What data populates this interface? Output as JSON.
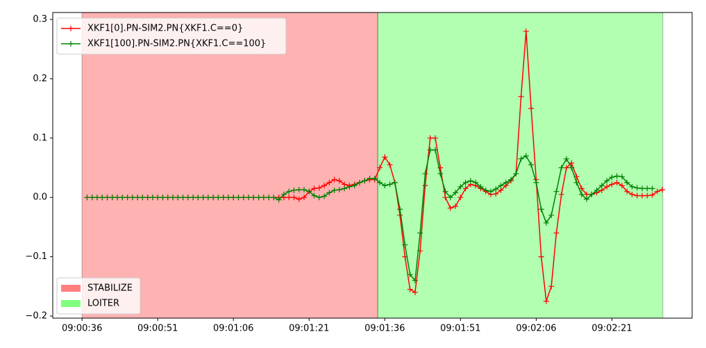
{
  "chart_data": {
    "type": "line",
    "x": [
      "09:00:37",
      "09:00:38",
      "09:00:39",
      "09:00:40",
      "09:00:41",
      "09:00:42",
      "09:00:43",
      "09:00:44",
      "09:00:45",
      "09:00:46",
      "09:00:47",
      "09:00:48",
      "09:00:49",
      "09:00:50",
      "09:00:51",
      "09:00:52",
      "09:00:53",
      "09:00:54",
      "09:00:55",
      "09:00:56",
      "09:00:57",
      "09:00:58",
      "09:00:59",
      "09:01:00",
      "09:01:01",
      "09:01:02",
      "09:01:03",
      "09:01:04",
      "09:01:05",
      "09:01:06",
      "09:01:07",
      "09:01:08",
      "09:01:09",
      "09:01:10",
      "09:01:11",
      "09:01:12",
      "09:01:13",
      "09:01:14",
      "09:01:15",
      "09:01:16",
      "09:01:17",
      "09:01:18",
      "09:01:19",
      "09:01:20",
      "09:01:21",
      "09:01:22",
      "09:01:23",
      "09:01:24",
      "09:01:25",
      "09:01:26",
      "09:01:27",
      "09:01:28",
      "09:01:29",
      "09:01:30",
      "09:01:31",
      "09:01:32",
      "09:01:33",
      "09:01:34",
      "09:01:35",
      "09:01:36",
      "09:01:37",
      "09:01:38",
      "09:01:39",
      "09:01:40",
      "09:01:41",
      "09:01:42",
      "09:01:43",
      "09:01:44",
      "09:01:45",
      "09:01:46",
      "09:01:47",
      "09:01:48",
      "09:01:49",
      "09:01:50",
      "09:01:51",
      "09:01:52",
      "09:01:53",
      "09:01:54",
      "09:01:55",
      "09:01:56",
      "09:01:57",
      "09:01:58",
      "09:01:59",
      "09:02:00",
      "09:02:01",
      "09:02:02",
      "09:02:03",
      "09:02:04",
      "09:02:05",
      "09:02:06",
      "09:02:07",
      "09:02:08",
      "09:02:09",
      "09:02:10",
      "09:02:11",
      "09:02:12",
      "09:02:13",
      "09:02:14",
      "09:02:15",
      "09:02:16",
      "09:02:17",
      "09:02:18",
      "09:02:19",
      "09:02:20",
      "09:02:21",
      "09:02:22",
      "09:02:23",
      "09:02:24",
      "09:02:25",
      "09:02:26",
      "09:02:27",
      "09:02:28",
      "09:02:29",
      "09:02:30",
      "09:02:31"
    ],
    "series": [
      {
        "name": "XKF1[0].PN-SIM2.PN{XKF1.C==0}",
        "color": "#ff0000",
        "values": [
          0,
          0,
          0,
          0,
          0,
          0,
          0,
          0,
          0,
          0,
          0,
          0,
          0,
          0,
          0,
          0,
          0,
          0,
          0,
          0,
          0,
          0,
          0,
          0,
          0,
          0,
          0,
          0,
          0,
          0,
          0,
          0,
          0,
          0,
          0,
          0,
          0,
          0,
          0,
          0,
          0,
          0,
          -0.003,
          0.0,
          0.01,
          0.015,
          0.016,
          0.02,
          0.025,
          0.03,
          0.028,
          0.022,
          0.02,
          0.022,
          0.025,
          0.028,
          0.03,
          0.03,
          0.05,
          0.068,
          0.055,
          0.025,
          -0.03,
          -0.1,
          -0.155,
          -0.16,
          -0.09,
          0.02,
          0.1,
          0.1,
          0.05,
          0.0,
          -0.018,
          -0.015,
          0.0,
          0.015,
          0.022,
          0.02,
          0.015,
          0.01,
          0.005,
          0.006,
          0.012,
          0.02,
          0.028,
          0.04,
          0.17,
          0.28,
          0.15,
          0.03,
          -0.1,
          -0.175,
          -0.15,
          -0.06,
          0.005,
          0.05,
          0.058,
          0.035,
          0.015,
          0.005,
          0.005,
          0.008,
          0.012,
          0.018,
          0.022,
          0.025,
          0.02,
          0.01,
          0.005,
          0.003,
          0.003,
          0.003,
          0.004,
          0.01,
          0.013
        ]
      },
      {
        "name": "XKF1[100].PN-SIM2.PN{XKF1.C==100}",
        "color": "#008000",
        "values": [
          0,
          0,
          0,
          0,
          0,
          0,
          0,
          0,
          0,
          0,
          0,
          0,
          0,
          0,
          0,
          0,
          0,
          0,
          0,
          0,
          0,
          0,
          0,
          0,
          0,
          0,
          0,
          0,
          0,
          0,
          0,
          0,
          0,
          0,
          0,
          0,
          0,
          0,
          -0.004,
          0.005,
          0.01,
          0.012,
          0.013,
          0.013,
          0.01,
          0.003,
          0.0,
          0.002,
          0.008,
          0.012,
          0.013,
          0.015,
          0.018,
          0.02,
          0.025,
          0.028,
          0.032,
          0.032,
          0.025,
          0.02,
          0.022,
          0.025,
          -0.02,
          -0.08,
          -0.13,
          -0.14,
          -0.06,
          0.04,
          0.08,
          0.08,
          0.04,
          0.01,
          0.0,
          0.008,
          0.018,
          0.025,
          0.028,
          0.025,
          0.018,
          0.012,
          0.01,
          0.014,
          0.02,
          0.025,
          0.03,
          0.04,
          0.065,
          0.07,
          0.055,
          0.025,
          -0.02,
          -0.043,
          -0.03,
          0.01,
          0.05,
          0.065,
          0.05,
          0.025,
          0.005,
          -0.003,
          0.005,
          0.012,
          0.02,
          0.028,
          0.034,
          0.036,
          0.035,
          0.025,
          0.018,
          0.016,
          0.015,
          0.015,
          0.015,
          null,
          null
        ]
      }
    ],
    "regions": [
      {
        "name": "STABILIZE",
        "color": "#ff0000",
        "start": "09:00:36",
        "end": "09:01:34.6"
      },
      {
        "name": "LOITER",
        "color": "#00ff00",
        "start": "09:01:34.6",
        "end": "09:02:31.1"
      }
    ],
    "xlim": [
      "09:00:30.2",
      "09:02:36.9"
    ],
    "xticks": [
      "09:00:36",
      "09:00:51",
      "09:01:06",
      "09:01:21",
      "09:01:36",
      "09:01:51",
      "09:02:06",
      "09:02:21"
    ],
    "ylim": [
      -0.2035,
      0.3117
    ],
    "yticks": [
      {
        "value": -0.2,
        "label": "−0.2"
      },
      {
        "value": -0.1,
        "label": "−0.1"
      },
      {
        "value": 0,
        "label": "0.0"
      },
      0.1,
      0.2,
      0.3
    ],
    "legend": "upper left",
    "region_legend": "lower left"
  }
}
